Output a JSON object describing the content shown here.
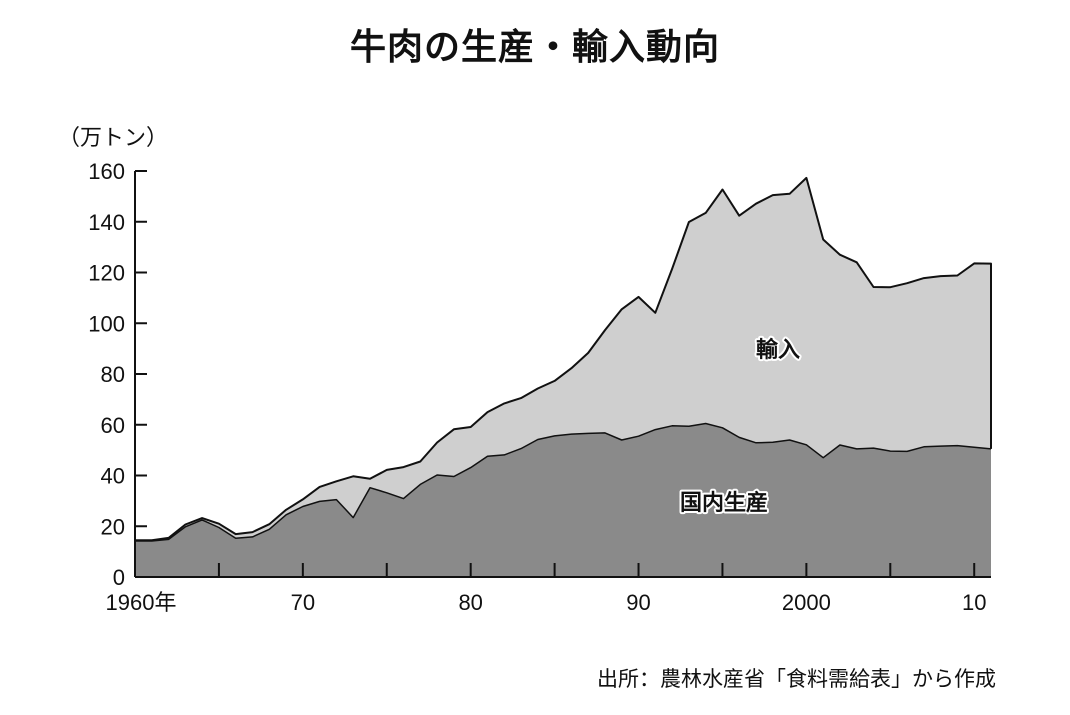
{
  "title": "牛肉の生産・輸入動向",
  "source_note": "出所：農林水産省「食料需給表」から作成",
  "colors": {
    "domestic_fill": "#8a8a8a",
    "import_fill": "#cfcfcf",
    "line": "#111111",
    "background": "#ffffff"
  },
  "chart_data": {
    "type": "area",
    "stacked": true,
    "title": "牛肉の生産・輸入動向",
    "ylabel": "（万トン）",
    "ylim": [
      0,
      160
    ],
    "yticks": [
      0,
      20,
      40,
      60,
      80,
      100,
      120,
      140,
      160
    ],
    "ytick_labels": [
      "0",
      "20",
      "40",
      "60",
      "80",
      "100",
      "120",
      "140",
      "160"
    ],
    "xlim": [
      1960,
      2011
    ],
    "xticks": [
      1960,
      1970,
      1980,
      1990,
      2000,
      2010
    ],
    "xtick_labels": [
      "1960年",
      "70",
      "80",
      "90",
      "2000",
      "10"
    ],
    "x": [
      1960,
      1961,
      1962,
      1963,
      1964,
      1965,
      1966,
      1967,
      1968,
      1969,
      1970,
      1971,
      1972,
      1973,
      1974,
      1975,
      1976,
      1977,
      1978,
      1979,
      1980,
      1981,
      1982,
      1983,
      1984,
      1985,
      1986,
      1987,
      1988,
      1989,
      1990,
      1991,
      1992,
      1993,
      1994,
      1995,
      1996,
      1997,
      1998,
      1999,
      2000,
      2001,
      2002,
      2003,
      2004,
      2005,
      2006,
      2007,
      2008,
      2009,
      2010,
      2011
    ],
    "series": [
      {
        "name": "国内生産",
        "values": [
          14.2,
          14.2,
          14.8,
          19.8,
          22.5,
          19.5,
          15.3,
          15.8,
          18.8,
          24.5,
          27.8,
          29.8,
          30.5,
          23.4,
          35.2,
          33.2,
          30.9,
          36.5,
          40.2,
          39.6,
          43.1,
          47.6,
          48.1,
          50.6,
          54.2,
          55.6,
          56.3,
          56.6,
          56.8,
          54.0,
          55.5,
          58.1,
          59.6,
          59.4,
          60.5,
          58.8,
          55.0,
          52.9,
          53.1,
          54.0,
          52.1,
          47.0,
          52.0,
          50.5,
          50.8,
          49.6,
          49.5,
          51.3,
          51.6,
          51.8,
          51.1,
          50.5
        ]
      },
      {
        "name": "輸入",
        "values": [
          0.3,
          0.3,
          0.6,
          0.9,
          0.7,
          1.5,
          1.6,
          1.9,
          2.0,
          2.0,
          2.8,
          5.7,
          7.2,
          16.3,
          3.5,
          9.0,
          12.4,
          9.0,
          12.8,
          18.6,
          16.0,
          17.4,
          20.3,
          19.9,
          20.1,
          21.7,
          26.0,
          31.7,
          40.5,
          51.5,
          54.9,
          46.0,
          61.8,
          80.5,
          83.0,
          93.9,
          87.4,
          94.2,
          97.4,
          97.0,
          105.2,
          86.0,
          75.0,
          73.5,
          63.5,
          64.6,
          66.3,
          66.5,
          67.0,
          67.0,
          72.5,
          73.0
        ]
      }
    ],
    "annotations": [
      "輸入",
      "国内生産"
    ],
    "grid": false,
    "legend": "none"
  }
}
